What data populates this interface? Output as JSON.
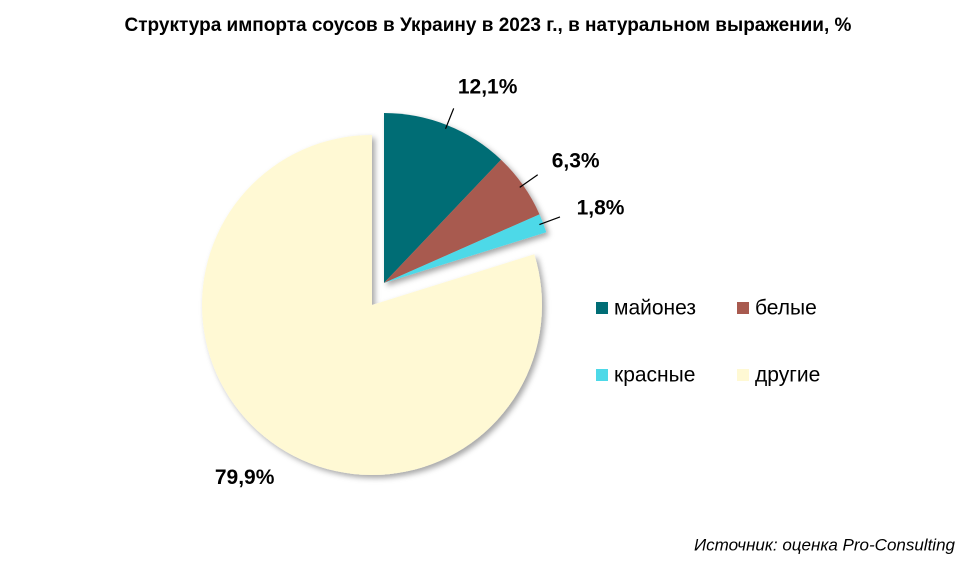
{
  "chart_data": {
    "type": "pie",
    "title": "Структура импорта соусов в Украину в 2023 г., в натуральном выражении, %",
    "categories": [
      "майонез",
      "белые",
      "красные",
      "другие"
    ],
    "values": [
      12.1,
      6.3,
      1.8,
      79.9
    ],
    "value_labels": [
      "12,1%",
      "6,3%",
      "1,8%",
      "79,9%"
    ],
    "colors": [
      "#006d75",
      "#a85a4f",
      "#4dd9e8",
      "#fff9d4"
    ],
    "source": "Источник: оценка Pro-Consulting"
  }
}
